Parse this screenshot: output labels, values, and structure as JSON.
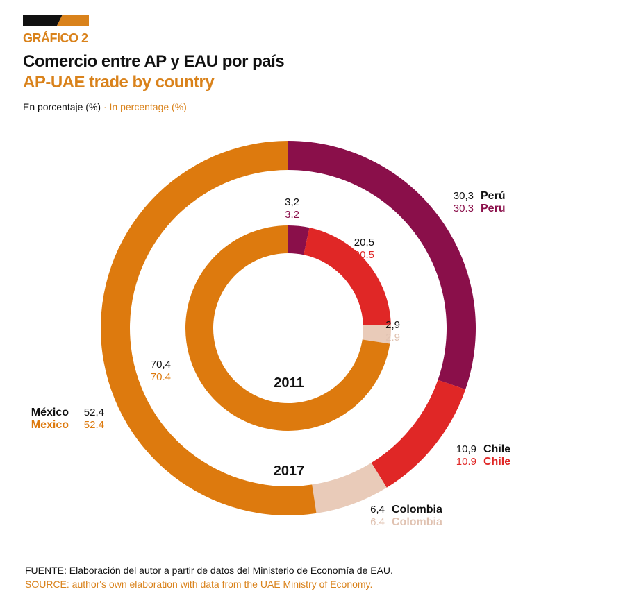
{
  "header": {
    "kicker": "GRÁFICO 2",
    "title_es": "Comercio entre AP y EAU por país",
    "title_en": "AP-UAE trade by country",
    "unit_es": "En porcentaje (%)",
    "unit_sep": " · ",
    "unit_en": "In percentage (%)"
  },
  "footer": {
    "source_es": "FUENTE: Elaboración del autor a partir de datos del Ministerio de Economía de EAU.",
    "source_en": "SOURCE: author's own elaboration with data from the UAE Ministry of Economy."
  },
  "colors": {
    "accent": "#D9821B",
    "peru": "#8A0F4A",
    "chile": "#E02726",
    "colombia": "#E9CBB9",
    "mexico": "#DD7A0E"
  },
  "chart_data": {
    "type": "donut",
    "title": "Comercio entre AP y EAU por país / AP-UAE trade by country",
    "rings": [
      {
        "name": "2017",
        "position": "outer",
        "slices": [
          {
            "country_es": "Perú",
            "country_en": "Peru",
            "value": 30.3,
            "label_es": "30,3",
            "label_en": "30.3",
            "color": "#8A0F4A"
          },
          {
            "country_es": "Chile",
            "country_en": "Chile",
            "value": 10.9,
            "label_es": "10,9",
            "label_en": "10.9",
            "color": "#E02726"
          },
          {
            "country_es": "Colombia",
            "country_en": "Colombia",
            "value": 6.4,
            "label_es": "6,4",
            "label_en": "6.4",
            "color": "#E9CBB9"
          },
          {
            "country_es": "México",
            "country_en": "Mexico",
            "value": 52.4,
            "label_es": "52,4",
            "label_en": "52.4",
            "color": "#DD7A0E"
          }
        ]
      },
      {
        "name": "2011",
        "position": "inner",
        "slices": [
          {
            "country_es": "Perú",
            "country_en": "Peru",
            "value": 3.2,
            "label_es": "3,2",
            "label_en": "3.2",
            "color": "#8A0F4A"
          },
          {
            "country_es": "Chile",
            "country_en": "Chile",
            "value": 20.5,
            "label_es": "20,5",
            "label_en": "20.5",
            "color": "#E02726"
          },
          {
            "country_es": "Colombia",
            "country_en": "Colombia",
            "value": 2.9,
            "label_es": "2,9",
            "label_en": "2.9",
            "color": "#E9CBB9"
          },
          {
            "country_es": "México",
            "country_en": "Mexico",
            "value": 70.4,
            "label_es": "70,4",
            "label_en": "70.4",
            "color": "#DD7A0E"
          }
        ]
      }
    ]
  }
}
